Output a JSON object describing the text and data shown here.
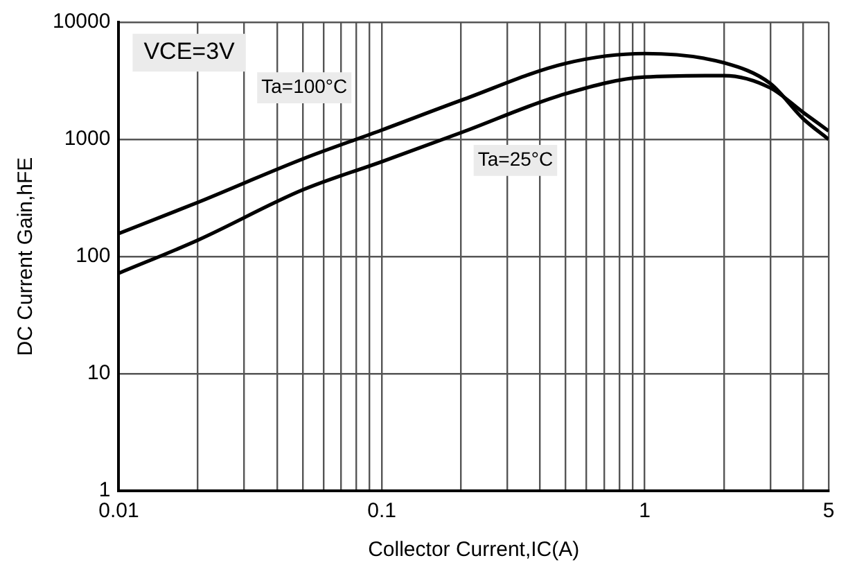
{
  "chart_data": {
    "type": "line",
    "xlabel": "Collector Current,IC(A)",
    "ylabel": "DC Current Gain,hFE",
    "annotations": [
      "VCE=3V"
    ],
    "log": "xy",
    "grid": true,
    "legend": false,
    "marker": "none",
    "line_style": "solid",
    "xlim": [
      0.01,
      5
    ],
    "ylim": [
      1,
      10000
    ],
    "xticks": [
      0.01,
      {
        "value": 0.02,
        "label": null
      },
      {
        "value": 0.03,
        "label": null
      },
      {
        "value": 0.04,
        "label": null
      },
      {
        "value": 0.05,
        "label": null
      },
      {
        "value": 0.06,
        "label": null
      },
      {
        "value": 0.07,
        "label": null
      },
      {
        "value": 0.08,
        "label": null
      },
      {
        "value": 0.09,
        "label": null
      },
      0.1,
      {
        "value": 0.2,
        "label": null
      },
      {
        "value": 0.3,
        "label": null
      },
      {
        "value": 0.4,
        "label": null
      },
      {
        "value": 0.5,
        "label": null
      },
      {
        "value": 0.6,
        "label": null
      },
      {
        "value": 0.7,
        "label": null
      },
      {
        "value": 0.8,
        "label": null
      },
      {
        "value": 0.9,
        "label": null
      },
      1,
      {
        "value": 2,
        "label": null
      },
      {
        "value": 3,
        "label": null
      },
      {
        "value": 4,
        "label": null
      },
      5
    ],
    "yticks": [
      1,
      10,
      100,
      1000,
      10000
    ],
    "x": [
      0.01,
      0.02,
      0.05,
      0.1,
      0.2,
      0.5,
      1,
      2,
      3,
      4,
      5
    ],
    "series": [
      {
        "name": "Ta=100°C",
        "color": "#000000",
        "values": [
          157,
          290,
          680,
          1200,
          2150,
          4450,
          5400,
          4500,
          3000,
          1500,
          1000
        ]
      },
      {
        "name": "Ta=25°C",
        "color": "#000000",
        "values": [
          72,
          138,
          370,
          645,
          1140,
          2450,
          3400,
          3500,
          2750,
          1700,
          1180
        ]
      }
    ]
  }
}
